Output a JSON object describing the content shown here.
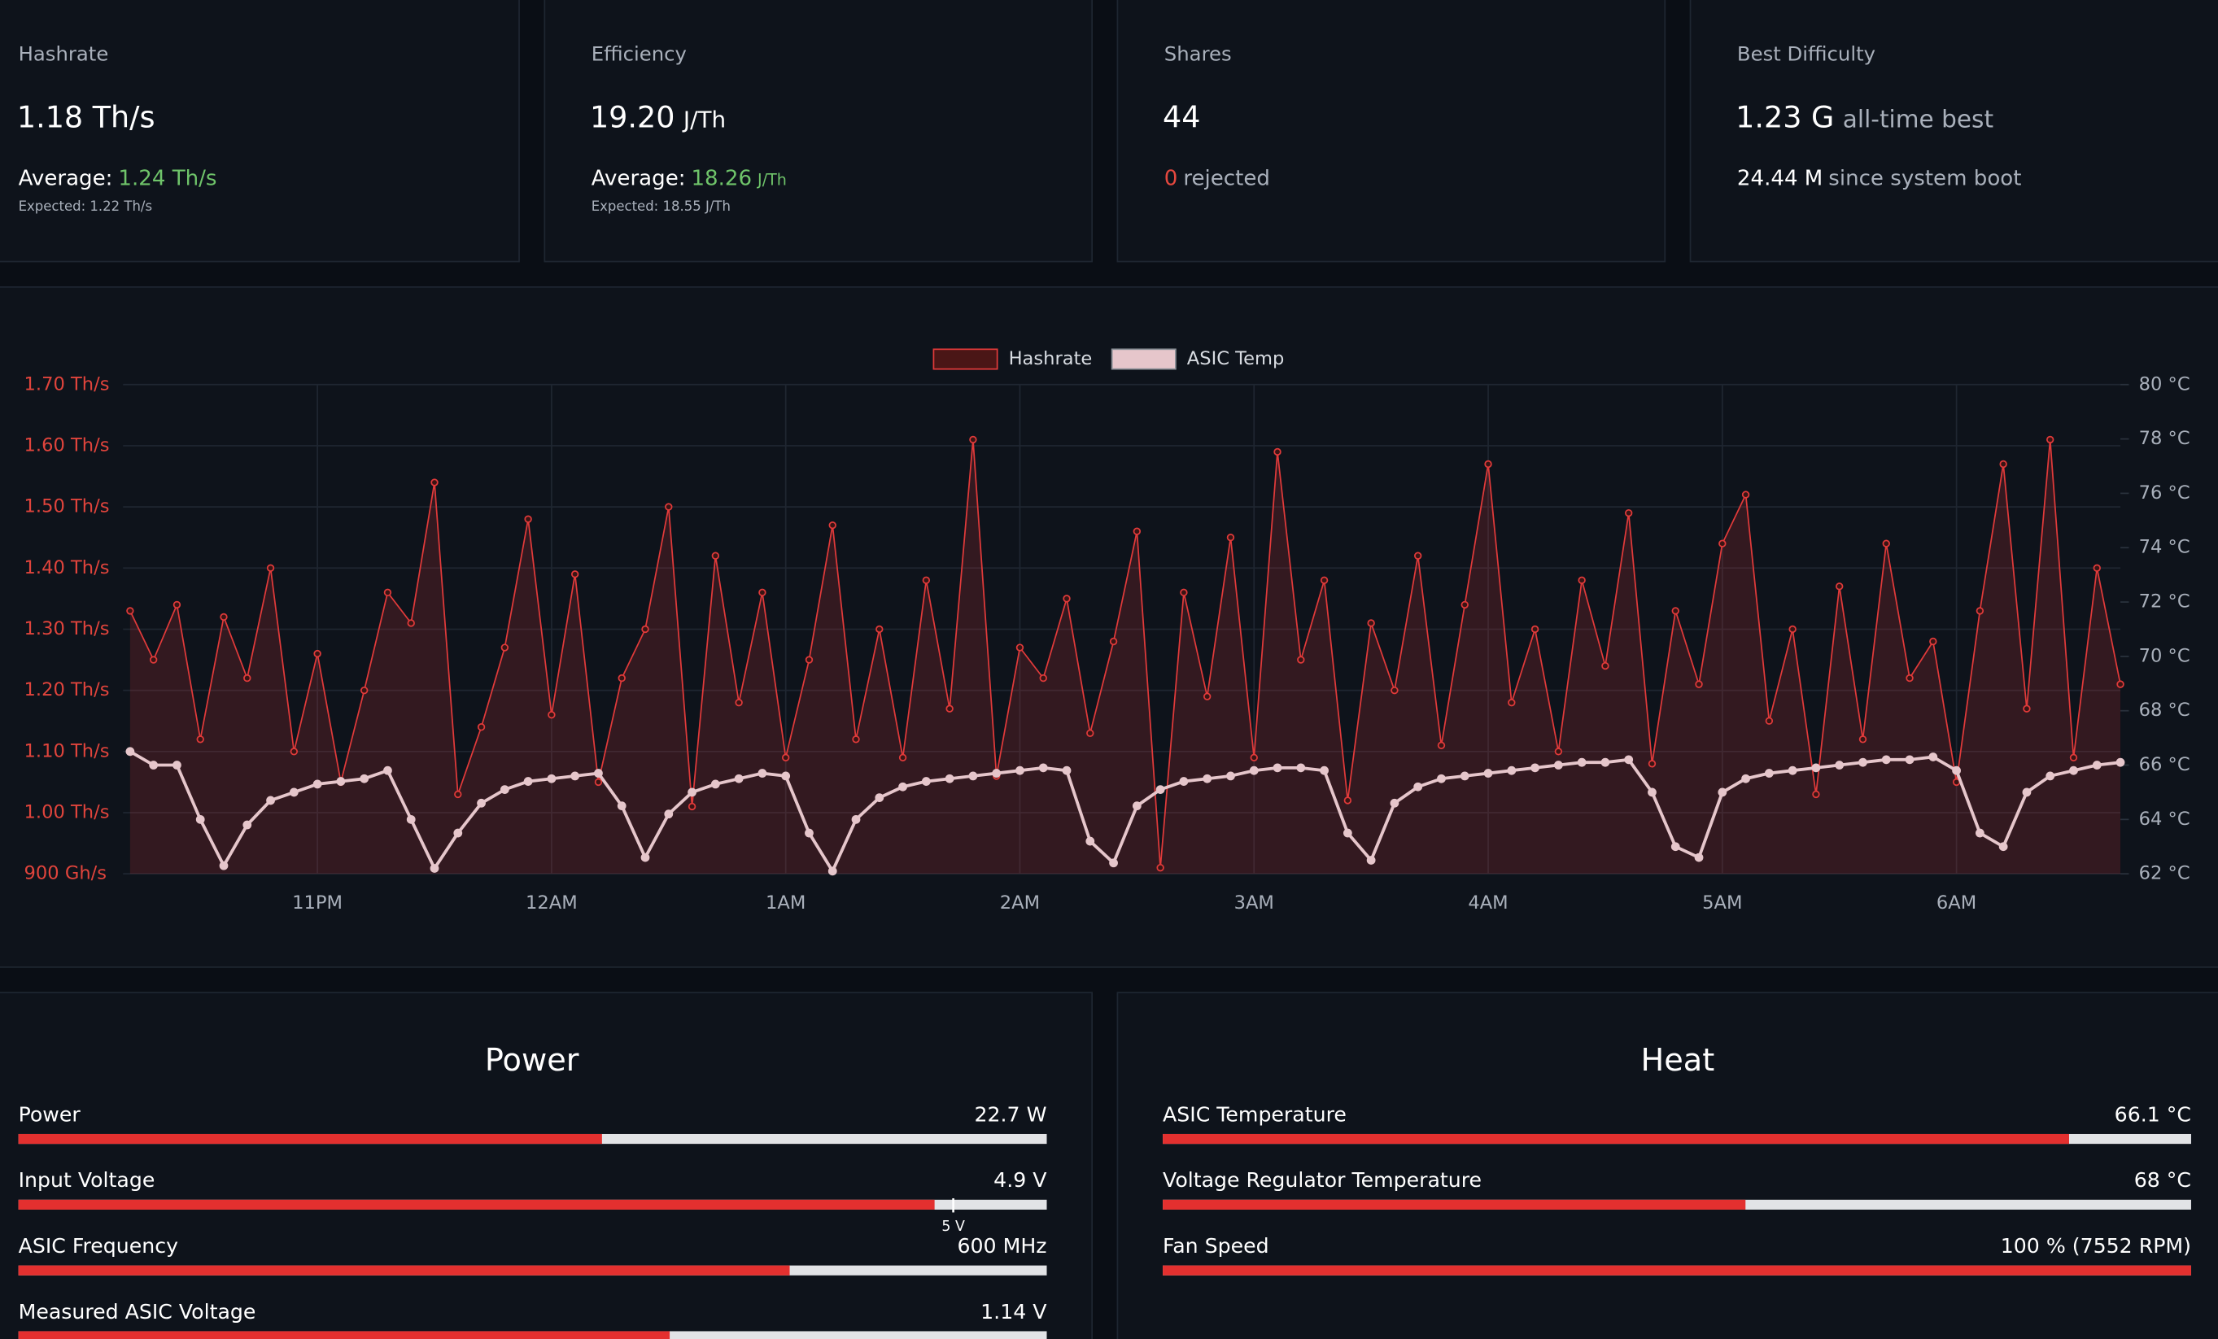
{
  "cards": [
    {
      "title": "Hashrate",
      "value": "1.18 Th/s",
      "average_label": "Average:",
      "average": "1.24 Th/s",
      "expected": "Expected: 1.22 Th/s"
    },
    {
      "title": "Efficiency",
      "value": "19.20",
      "unit": "J/Th",
      "average_label": "Average:",
      "average": "18.26",
      "average_unit": "J/Th",
      "expected": "Expected: 18.55 J/Th"
    },
    {
      "title": "Shares",
      "value": "44",
      "rejected": "0",
      "rejected_label": "rejected"
    },
    {
      "title": "Best Difficulty",
      "value": "1.23 G",
      "value_note": "all-time best",
      "since_boot": "24.44 M",
      "since_boot_label": "since system boot"
    }
  ],
  "chart_data": {
    "type": "line",
    "legend": "top",
    "grid": true,
    "x": [
      22.2,
      22.3,
      22.4,
      22.5,
      22.6,
      22.7,
      22.8,
      22.9,
      23.0,
      23.1,
      23.2,
      23.3,
      23.4,
      23.5,
      23.6,
      23.7,
      23.8,
      23.9,
      24.0,
      24.1,
      24.2,
      24.3,
      24.4,
      24.5,
      24.6,
      24.7,
      24.8,
      24.9,
      25.0,
      25.1,
      25.2,
      25.3,
      25.4,
      25.5,
      25.6,
      25.7,
      25.8,
      25.9,
      26.0,
      26.1,
      26.2,
      26.3,
      26.4,
      26.5,
      26.6,
      26.7,
      26.8,
      26.9,
      27.0,
      27.1,
      27.2,
      27.3,
      27.4,
      27.5,
      27.6,
      27.7,
      27.8,
      27.9,
      28.0,
      28.1,
      28.2,
      28.3,
      28.4,
      28.5,
      28.6,
      28.7,
      28.8,
      28.9,
      29.0,
      29.1,
      29.2,
      29.3,
      29.4,
      29.5,
      29.6,
      29.7,
      29.8,
      29.9,
      30.0,
      30.1,
      30.2,
      30.3,
      30.4,
      30.5,
      30.6,
      30.7
    ],
    "series": [
      {
        "name": "Hashrate",
        "color": "#e03a3a",
        "fill": true,
        "values": [
          1.33,
          1.25,
          1.34,
          1.12,
          1.32,
          1.22,
          1.4,
          1.1,
          1.26,
          1.05,
          1.2,
          1.36,
          1.31,
          1.54,
          1.03,
          1.14,
          1.27,
          1.48,
          1.16,
          1.39,
          1.05,
          1.22,
          1.3,
          1.5,
          1.01,
          1.42,
          1.18,
          1.36,
          1.09,
          1.25,
          1.47,
          1.12,
          1.3,
          1.09,
          1.38,
          1.17,
          1.61,
          1.06,
          1.27,
          1.22,
          1.35,
          1.13,
          1.28,
          1.46,
          0.91,
          1.36,
          1.19,
          1.45,
          1.09,
          1.59,
          1.25,
          1.38,
          1.02,
          1.31,
          1.2,
          1.42,
          1.11,
          1.34,
          1.57,
          1.18,
          1.3,
          1.1,
          1.38,
          1.24,
          1.49,
          1.08,
          1.33,
          1.21,
          1.44,
          1.52,
          1.15,
          1.3,
          1.03,
          1.37,
          1.12,
          1.44,
          1.22,
          1.28,
          1.05,
          1.33,
          1.57,
          1.17,
          1.61,
          1.09,
          1.4,
          1.21
        ]
      },
      {
        "name": "ASIC Temp",
        "color": "#e6c6cb",
        "axis": "y2",
        "values": [
          66.5,
          66.0,
          66.0,
          64.0,
          62.3,
          63.8,
          64.7,
          65.0,
          65.3,
          65.4,
          65.5,
          65.8,
          64.0,
          62.2,
          63.5,
          64.6,
          65.1,
          65.4,
          65.5,
          65.6,
          65.7,
          64.5,
          62.6,
          64.2,
          65.0,
          65.3,
          65.5,
          65.7,
          65.6,
          63.5,
          62.1,
          64.0,
          64.8,
          65.2,
          65.4,
          65.5,
          65.6,
          65.7,
          65.8,
          65.9,
          65.8,
          63.2,
          62.4,
          64.5,
          65.1,
          65.4,
          65.5,
          65.6,
          65.8,
          65.9,
          65.9,
          65.8,
          63.5,
          62.5,
          64.6,
          65.2,
          65.5,
          65.6,
          65.7,
          65.8,
          65.9,
          66.0,
          66.1,
          66.1,
          66.2,
          65.0,
          63.0,
          62.6,
          65.0,
          65.5,
          65.7,
          65.8,
          65.9,
          66.0,
          66.1,
          66.2,
          66.2,
          66.3,
          65.8,
          63.5,
          63.0,
          65.0,
          65.6,
          65.8,
          66.0,
          66.1
        ]
      }
    ],
    "xlim": [
      22.17,
      30.7
    ],
    "xticks": [
      {
        "value": 23,
        "label": "11PM"
      },
      {
        "value": 24,
        "label": "12AM"
      },
      {
        "value": 25,
        "label": "1AM"
      },
      {
        "value": 26,
        "label": "2AM"
      },
      {
        "value": 27,
        "label": "3AM"
      },
      {
        "value": 28,
        "label": "4AM"
      },
      {
        "value": 29,
        "label": "5AM"
      },
      {
        "value": 30,
        "label": "6AM"
      }
    ],
    "ylim": [
      0.9,
      1.7
    ],
    "yticks": [
      {
        "value": 0.9,
        "label": "900 Gh/s"
      },
      {
        "value": 1.0,
        "label": "1.00 Th/s"
      },
      {
        "value": 1.1,
        "label": "1.10 Th/s"
      },
      {
        "value": 1.2,
        "label": "1.20 Th/s"
      },
      {
        "value": 1.3,
        "label": "1.30 Th/s"
      },
      {
        "value": 1.4,
        "label": "1.40 Th/s"
      },
      {
        "value": 1.5,
        "label": "1.50 Th/s"
      },
      {
        "value": 1.6,
        "label": "1.60 Th/s"
      },
      {
        "value": 1.7,
        "label": "1.70 Th/s"
      }
    ],
    "y2lim": [
      62,
      80
    ],
    "y2ticks": [
      {
        "value": 62,
        "label": "62 °C"
      },
      {
        "value": 64,
        "label": "64 °C"
      },
      {
        "value": 66,
        "label": "66 °C"
      },
      {
        "value": 68,
        "label": "68 °C"
      },
      {
        "value": 70,
        "label": "70 °C"
      },
      {
        "value": 72,
        "label": "72 °C"
      },
      {
        "value": 74,
        "label": "74 °C"
      },
      {
        "value": 76,
        "label": "76 °C"
      },
      {
        "value": 78,
        "label": "78 °C"
      },
      {
        "value": 80,
        "label": "80 °C"
      }
    ]
  },
  "power": {
    "title": "Power",
    "rows": [
      {
        "label": "Power",
        "value_text": "22.7 W",
        "value": 22.7,
        "range": [
          0,
          40
        ]
      },
      {
        "label": "Input Voltage",
        "value_text": "4.9 V",
        "value": 4.9,
        "range": [
          0,
          5.5
        ],
        "marker": {
          "value": 5,
          "label": "5 V"
        }
      },
      {
        "label": "ASIC Frequency",
        "value_text": "600 MHz",
        "value": 600,
        "range": [
          0,
          800
        ]
      },
      {
        "label": "Measured ASIC Voltage",
        "value_text": "1.14 V",
        "value": 1.14,
        "range": [
          0,
          1.8
        ]
      }
    ]
  },
  "heat": {
    "title": "Heat",
    "rows": [
      {
        "label": "ASIC Temperature",
        "value_text": "66.1 °C",
        "value": 66.1,
        "range": [
          0,
          75
        ]
      },
      {
        "label": "Voltage Regulator Temperature",
        "value_text": "68 °C",
        "value": 68,
        "range": [
          0,
          120
        ]
      },
      {
        "label": "Fan Speed",
        "value_text": "100 % (7552 RPM)",
        "value": 100,
        "range": [
          0,
          100
        ]
      }
    ]
  }
}
